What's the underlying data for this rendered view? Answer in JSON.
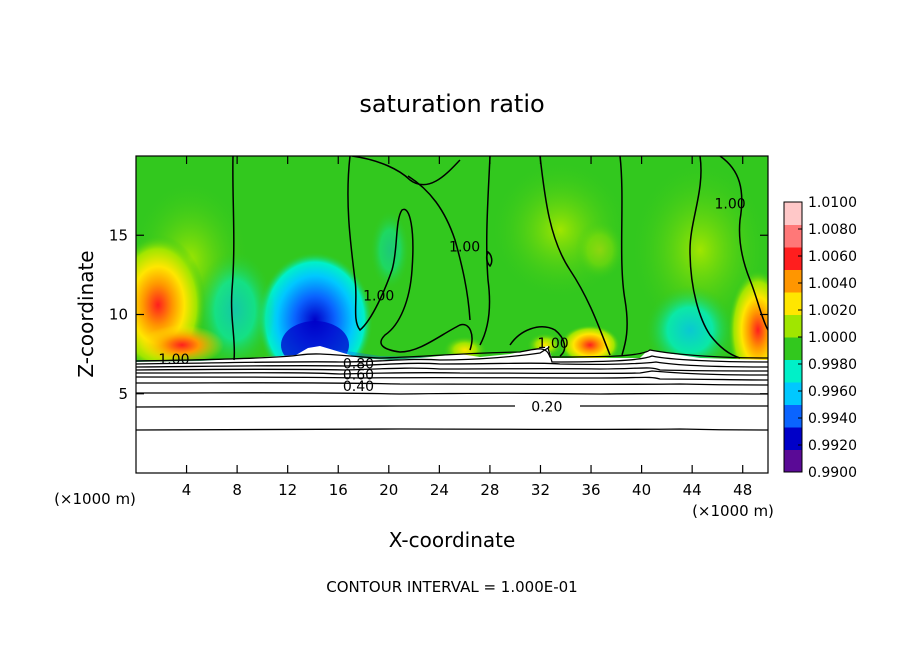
{
  "chart_data": {
    "type": "contour",
    "title": "saturation ratio",
    "xlabel": "X-coordinate",
    "ylabel": "Z-coordinate",
    "x_unit_left": "(×1000 m)",
    "x_unit_right": "(×1000 m)",
    "xlim": [
      0,
      50
    ],
    "ylim": [
      0,
      20
    ],
    "x_ticks": [
      4,
      8,
      12,
      16,
      20,
      24,
      28,
      32,
      36,
      40,
      44,
      48
    ],
    "x_tick_labels": [
      "4",
      "8",
      "12",
      "16",
      "20",
      "24",
      "28",
      "32",
      "36",
      "40",
      "44",
      "48"
    ],
    "y_ticks": [
      5,
      10,
      15
    ],
    "y_tick_labels": [
      "5",
      "10",
      "15"
    ],
    "footnote": "CONTOUR INTERVAL = 1.000E-01",
    "colorbar": {
      "levels": [
        0.99,
        0.992,
        0.994,
        0.996,
        0.998,
        1.0,
        1.002,
        1.004,
        1.006,
        1.008,
        1.01
      ],
      "labels": [
        "0.9900",
        "0.9920",
        "0.9940",
        "0.9960",
        "0.9980",
        "1.0000",
        "1.0020",
        "1.0040",
        "1.0060",
        "1.0080",
        "1.0100"
      ],
      "colors": [
        "#5a0a96",
        "#0000c8",
        "#0a64ff",
        "#00c8ff",
        "#00f0c8",
        "#32c81e",
        "#a0e600",
        "#ffe600",
        "#ff9600",
        "#ff1e1e",
        "#ff7878",
        "#ffc8c8"
      ]
    },
    "contour_labels": [
      {
        "text": "1.00",
        "x": 3.0,
        "z": 7.2
      },
      {
        "text": "1.00",
        "x": 19.2,
        "z": 11.2
      },
      {
        "text": "1.00",
        "x": 26.0,
        "z": 14.3
      },
      {
        "text": "1.00",
        "x": 33.0,
        "z": 8.2
      },
      {
        "text": "1.00",
        "x": 47.0,
        "z": 17.0
      },
      {
        "text": "0.80",
        "x": 17.6,
        "z": 6.9
      },
      {
        "text": "0.60",
        "x": 17.6,
        "z": 6.2
      },
      {
        "text": "0.40",
        "x": 17.6,
        "z": 5.5
      },
      {
        "text": "0.20",
        "x": 32.5,
        "z": 4.2
      }
    ]
  }
}
